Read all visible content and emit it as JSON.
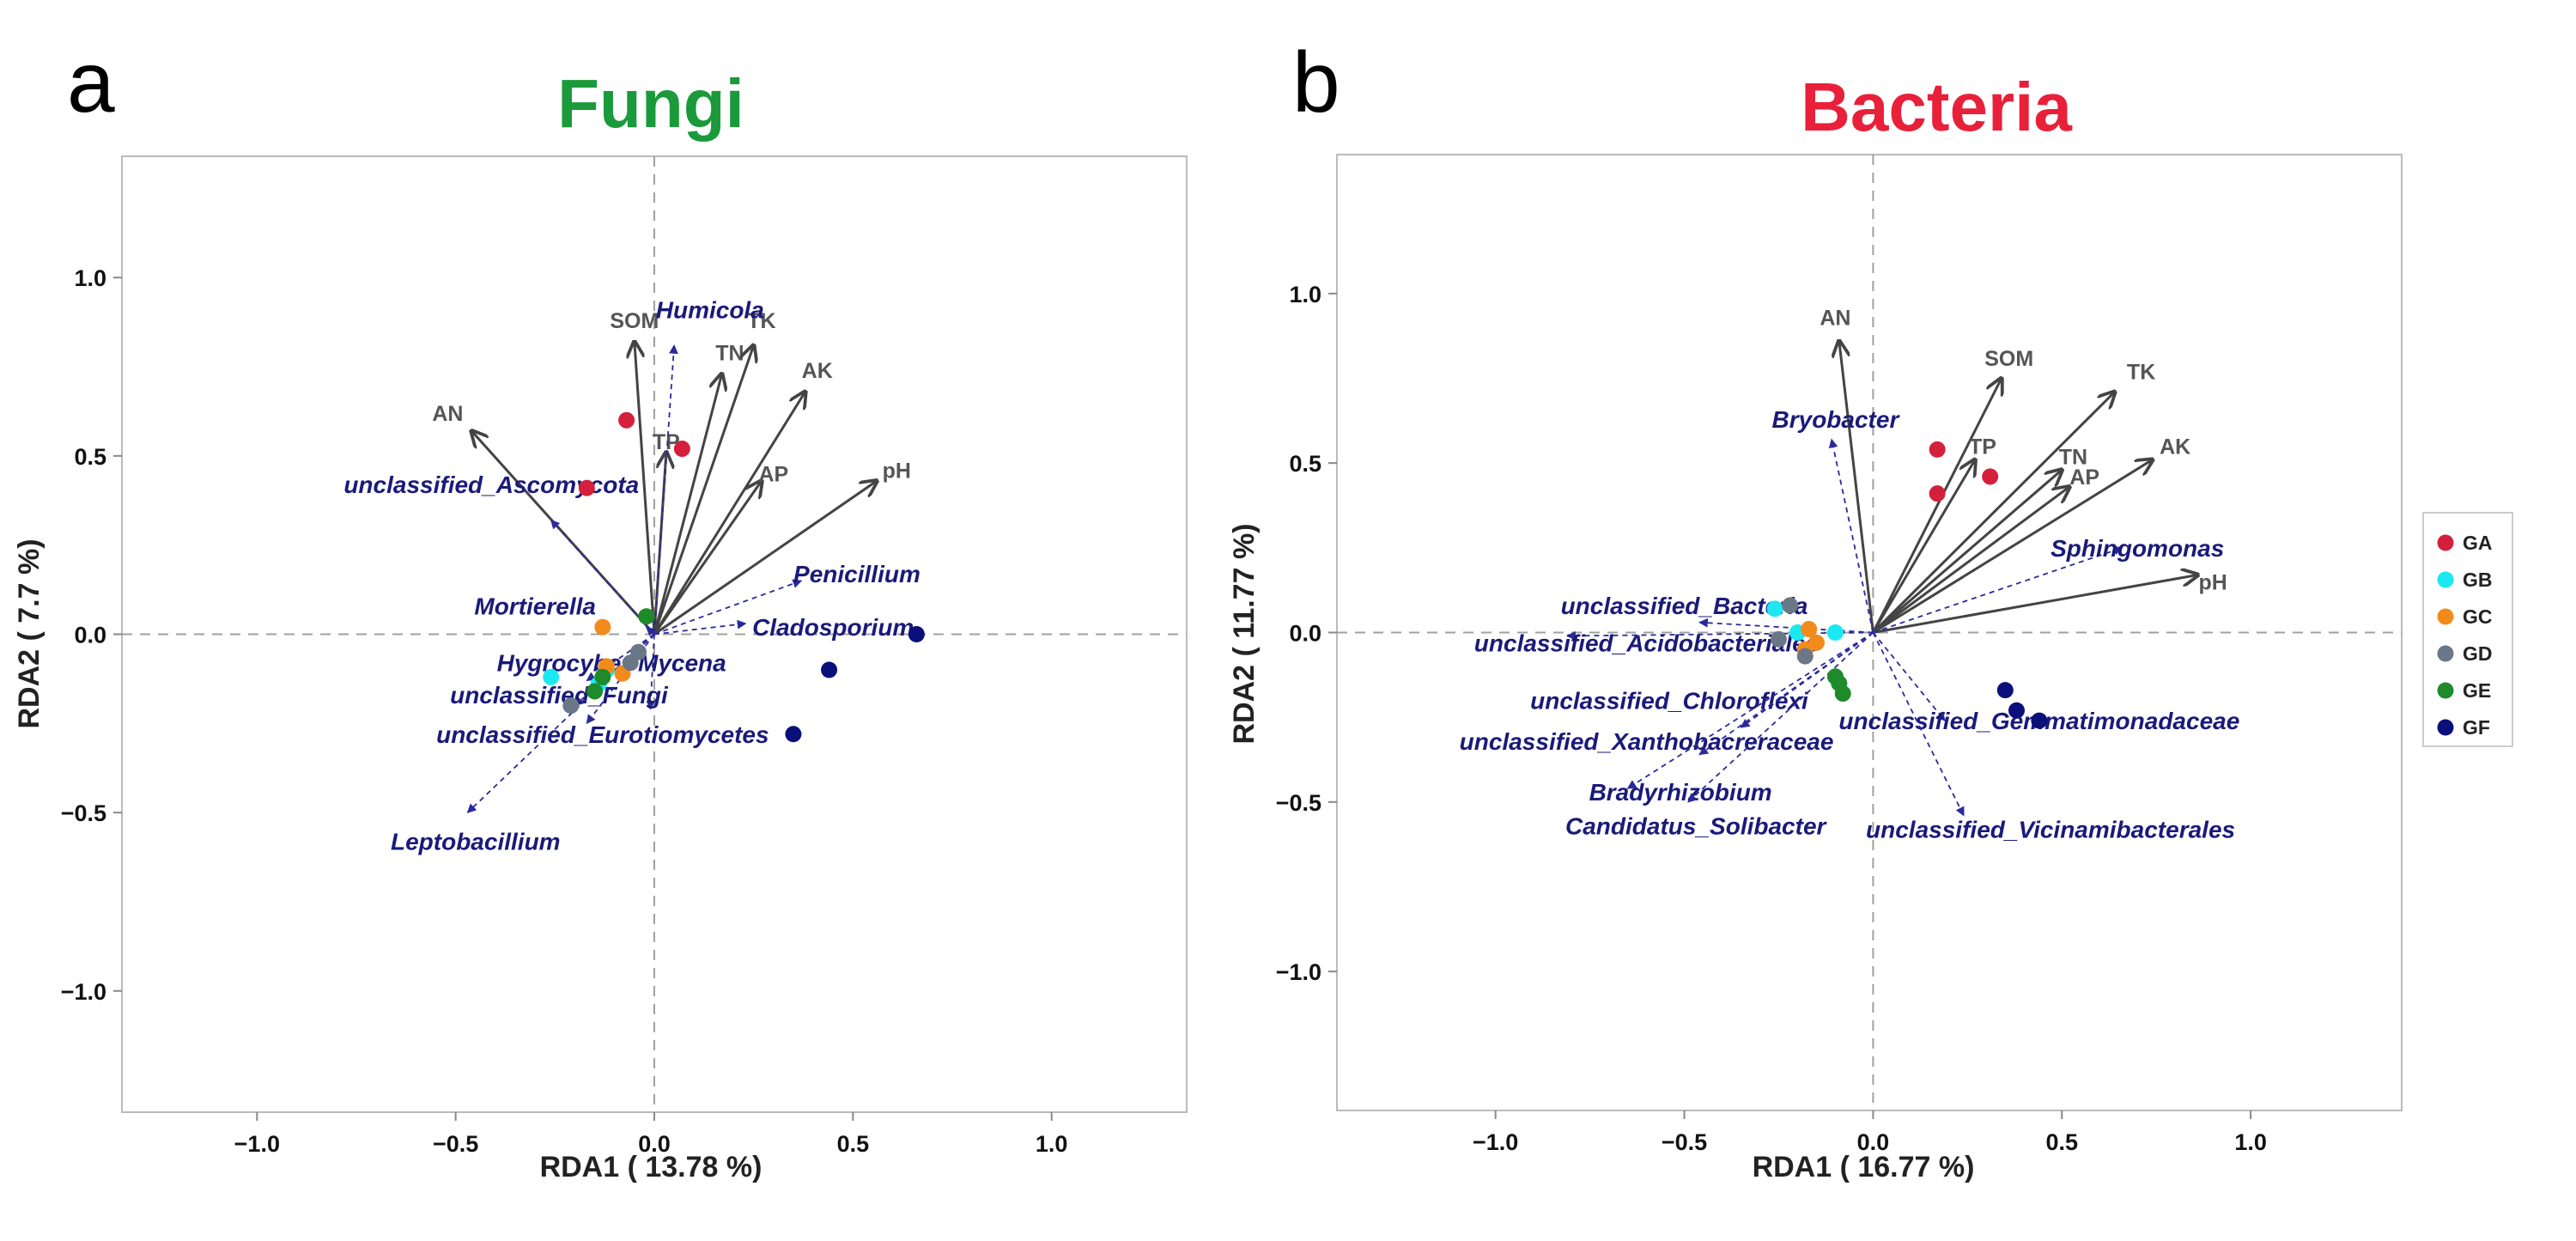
{
  "chart_data": [
    {
      "type": "scatter",
      "panel": "a",
      "title": "Fungi",
      "title_color": "#1a9a3a",
      "xlabel": "RDA1 ( 13.78 %)",
      "ylabel": "RDA2 ( 7.7 %)",
      "xlim": [
        -1.34,
        1.34
      ],
      "ylim": [
        -1.34,
        1.34
      ],
      "xticks": [
        -1.0,
        -0.5,
        0.0,
        0.5,
        1.0
      ],
      "yticks": [
        -1.0,
        -0.5,
        0.0,
        0.5,
        1.0
      ],
      "xtick_labels": [
        "−1.0",
        "−0.5",
        "0.0",
        "0.5",
        "1.0"
      ],
      "ytick_labels": [
        "−1.0",
        "−0.5",
        "0.0",
        "0.5",
        "1.0"
      ],
      "env_arrows": [
        {
          "name": "AN",
          "x": -0.46,
          "y": 0.57
        },
        {
          "name": "SOM",
          "x": -0.05,
          "y": 0.82
        },
        {
          "name": "TP",
          "x": 0.03,
          "y": 0.51
        },
        {
          "name": "TN",
          "x": 0.17,
          "y": 0.73
        },
        {
          "name": "TK",
          "x": 0.25,
          "y": 0.81
        },
        {
          "name": "AK",
          "x": 0.38,
          "y": 0.68
        },
        {
          "name": "AP",
          "x": 0.27,
          "y": 0.43
        },
        {
          "name": "pH",
          "x": 0.56,
          "y": 0.43
        }
      ],
      "species_arrows": [
        {
          "name": "Humicola",
          "x": 0.05,
          "y": 0.81
        },
        {
          "name": "unclassified_Ascomycota",
          "x": -0.26,
          "y": 0.32
        },
        {
          "name": "Penicillium",
          "x": 0.37,
          "y": 0.15
        },
        {
          "name": "Cladosporium",
          "x": 0.23,
          "y": 0.03
        },
        {
          "name": "Mortierella",
          "x": -0.02,
          "y": 0.02
        },
        {
          "name": "Mycena",
          "x": -0.01,
          "y": -0.21
        },
        {
          "name": "Hygrocybe",
          "x": -0.17,
          "y": -0.13
        },
        {
          "name": "unclassified_Fungi",
          "x": -0.2,
          "y": -0.2
        },
        {
          "name": "unclassified_Eurotiomycetes",
          "x": -0.17,
          "y": -0.25
        },
        {
          "name": "Leptobacillium",
          "x": -0.47,
          "y": -0.5
        }
      ],
      "points": [
        {
          "group": "GA",
          "x": -0.07,
          "y": 0.6
        },
        {
          "group": "GA",
          "x": 0.07,
          "y": 0.52
        },
        {
          "group": "GA",
          "x": -0.17,
          "y": 0.41
        },
        {
          "group": "GB",
          "x": -0.26,
          "y": -0.12
        },
        {
          "group": "GB",
          "x": -0.12,
          "y": -0.1
        },
        {
          "group": "GB",
          "x": -0.14,
          "y": -0.14
        },
        {
          "group": "GC",
          "x": -0.13,
          "y": 0.02
        },
        {
          "group": "GC",
          "x": -0.12,
          "y": -0.09
        },
        {
          "group": "GC",
          "x": -0.08,
          "y": -0.11
        },
        {
          "group": "GD",
          "x": -0.04,
          "y": -0.05
        },
        {
          "group": "GD",
          "x": -0.06,
          "y": -0.08
        },
        {
          "group": "GD",
          "x": -0.21,
          "y": -0.2
        },
        {
          "group": "GE",
          "x": -0.02,
          "y": 0.05
        },
        {
          "group": "GE",
          "x": -0.13,
          "y": -0.12
        },
        {
          "group": "GE",
          "x": -0.15,
          "y": -0.16
        },
        {
          "group": "GF",
          "x": 0.66,
          "y": 0.0
        },
        {
          "group": "GF",
          "x": 0.44,
          "y": -0.1
        },
        {
          "group": "GF",
          "x": 0.35,
          "y": -0.28
        }
      ]
    },
    {
      "type": "scatter",
      "panel": "b",
      "title": "Bacteria",
      "title_color": "#e8203a",
      "xlabel": "RDA1 ( 16.77 %)",
      "ylabel": "RDA2 ( 11.77 %)",
      "xlim": [
        -1.42,
        1.4
      ],
      "ylim": [
        -1.41,
        1.41
      ],
      "xticks": [
        -1.0,
        -0.5,
        0.0,
        0.5,
        1.0
      ],
      "yticks": [
        -1.0,
        -0.5,
        0.0,
        0.5,
        1.0
      ],
      "xtick_labels": [
        "−1.0",
        "−0.5",
        "0.0",
        "0.5",
        "1.0"
      ],
      "ytick_labels": [
        "−1.0",
        "−0.5",
        "0.0",
        "0.5",
        "1.0"
      ],
      "env_arrows": [
        {
          "name": "AN",
          "x": -0.09,
          "y": 0.86
        },
        {
          "name": "SOM",
          "x": 0.34,
          "y": 0.75
        },
        {
          "name": "TK",
          "x": 0.64,
          "y": 0.71
        },
        {
          "name": "TP",
          "x": 0.27,
          "y": 0.51
        },
        {
          "name": "TN",
          "x": 0.5,
          "y": 0.48
        },
        {
          "name": "AP",
          "x": 0.52,
          "y": 0.43
        },
        {
          "name": "AK",
          "x": 0.74,
          "y": 0.51
        },
        {
          "name": "pH",
          "x": 0.86,
          "y": 0.17
        }
      ],
      "species_arrows": [
        {
          "name": "Bryobacter",
          "x": -0.11,
          "y": 0.57
        },
        {
          "name": "Sphingomonas",
          "x": 0.66,
          "y": 0.25
        },
        {
          "name": "unclassified_Bacteria",
          "x": -0.46,
          "y": 0.03
        },
        {
          "name": "unclassified_Acidobacteriales",
          "x": -0.81,
          "y": -0.01
        },
        {
          "name": "unclassified_Chloroflexi",
          "x": -0.35,
          "y": -0.28
        },
        {
          "name": "unclassified_Xanthobacreraceae",
          "x": -0.46,
          "y": -0.36
        },
        {
          "name": "Bradyrhizobium",
          "x": -0.65,
          "y": -0.46
        },
        {
          "name": "Candidatus_Solibacter",
          "x": -0.49,
          "y": -0.5
        },
        {
          "name": "unclassified_Gemmatimonadaceae",
          "x": 0.19,
          "y": -0.26
        },
        {
          "name": "unclassified_Vicinamibacterales",
          "x": 0.24,
          "y": -0.54
        }
      ],
      "points": [
        {
          "group": "GA",
          "x": 0.17,
          "y": 0.54
        },
        {
          "group": "GA",
          "x": 0.17,
          "y": 0.41
        },
        {
          "group": "GA",
          "x": 0.31,
          "y": 0.46
        },
        {
          "group": "GB",
          "x": -0.26,
          "y": 0.07
        },
        {
          "group": "GB",
          "x": -0.2,
          "y": 0.0
        },
        {
          "group": "GB",
          "x": -0.1,
          "y": 0.0
        },
        {
          "group": "GC",
          "x": -0.17,
          "y": 0.01
        },
        {
          "group": "GC",
          "x": -0.15,
          "y": -0.03
        },
        {
          "group": "GC",
          "x": -0.18,
          "y": -0.05
        },
        {
          "group": "GD",
          "x": -0.22,
          "y": 0.08
        },
        {
          "group": "GD",
          "x": -0.25,
          "y": -0.02
        },
        {
          "group": "GD",
          "x": -0.18,
          "y": -0.07
        },
        {
          "group": "GE",
          "x": -0.1,
          "y": -0.13
        },
        {
          "group": "GE",
          "x": -0.09,
          "y": -0.15
        },
        {
          "group": "GE",
          "x": -0.08,
          "y": -0.18
        },
        {
          "group": "GF",
          "x": 0.35,
          "y": -0.17
        },
        {
          "group": "GF",
          "x": 0.38,
          "y": -0.23
        },
        {
          "group": "GF",
          "x": 0.44,
          "y": -0.26
        }
      ]
    }
  ],
  "legend": {
    "items": [
      {
        "label": "GA",
        "color": "#d4203c"
      },
      {
        "label": "GB",
        "color": "#1be8f0"
      },
      {
        "label": "GC",
        "color": "#f28a1c"
      },
      {
        "label": "GD",
        "color": "#6a7787"
      },
      {
        "label": "GE",
        "color": "#1e8a2a"
      },
      {
        "label": "GF",
        "color": "#0a0f7a"
      }
    ]
  },
  "colors": {
    "env_arrow": "#444444",
    "species_arrow": "#2a2a9a",
    "zero_line": "#a0a0a0",
    "frame": "#bbbbbb"
  }
}
